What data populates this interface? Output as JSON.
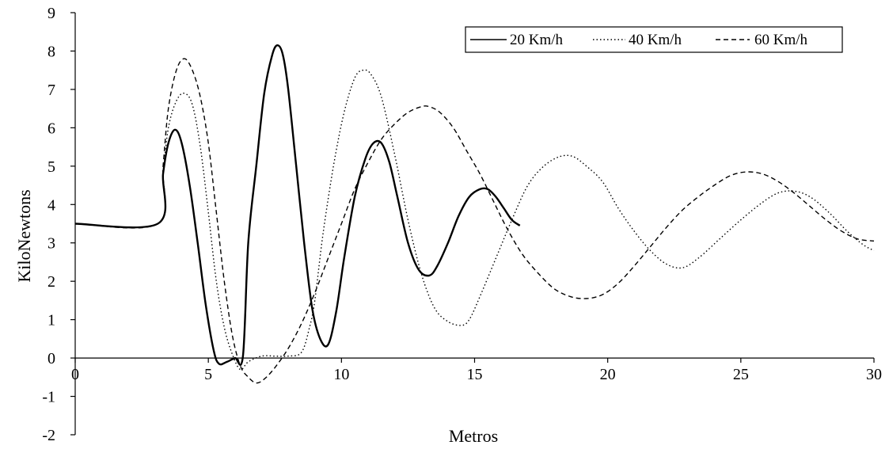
{
  "chart_data": {
    "type": "line",
    "xlabel": "Metros",
    "ylabel": "KiloNewtons",
    "xlim": [
      0,
      30
    ],
    "ylim": [
      -2,
      9
    ],
    "xticks": [
      0,
      5,
      10,
      15,
      20,
      25,
      30
    ],
    "yticks": [
      -2,
      -1,
      0,
      1,
      2,
      3,
      4,
      5,
      6,
      7,
      8,
      9
    ],
    "grid": false,
    "legend_position": "top-right",
    "series": [
      {
        "name": "20 Km/h",
        "style": "solid",
        "x": [
          0,
          3.1,
          3.3,
          3.5,
          3.75,
          4.0,
          4.3,
          4.6,
          4.9,
          5.2,
          5.4,
          5.7,
          6.0,
          6.3,
          6.5,
          6.8,
          7.1,
          7.4,
          7.6,
          7.8,
          8.0,
          8.3,
          8.6,
          8.9,
          9.2,
          9.5,
          9.8,
          10.1,
          10.5,
          10.9,
          11.2,
          11.5,
          11.8,
          12.1,
          12.5,
          12.9,
          13.3,
          13.6,
          14.0,
          14.4,
          14.8,
          15.2,
          15.5,
          15.8,
          16.1,
          16.4,
          16.7
        ],
        "y": [
          3.5,
          3.5,
          4.8,
          5.6,
          5.95,
          5.6,
          4.5,
          3.0,
          1.4,
          0.2,
          -0.15,
          -0.1,
          0.0,
          0.05,
          3.0,
          5.0,
          6.9,
          7.9,
          8.15,
          7.9,
          7.0,
          5.0,
          3.0,
          1.3,
          0.5,
          0.35,
          1.2,
          2.6,
          4.2,
          5.2,
          5.6,
          5.6,
          5.1,
          4.2,
          3.0,
          2.3,
          2.15,
          2.4,
          3.0,
          3.7,
          4.2,
          4.4,
          4.4,
          4.2,
          3.9,
          3.6,
          3.45
        ]
      },
      {
        "name": "40 Km/h",
        "style": "dotted",
        "x": [
          0,
          3.1,
          3.3,
          3.5,
          3.8,
          4.1,
          4.4,
          4.7,
          5.0,
          5.3,
          5.6,
          5.9,
          6.2,
          6.5,
          7.0,
          7.5,
          8.0,
          8.5,
          8.8,
          9.0,
          9.3,
          9.7,
          10.1,
          10.5,
          10.8,
          11.1,
          11.5,
          12.0,
          12.5,
          13.0,
          13.5,
          14.0,
          14.5,
          14.8,
          15.2,
          15.8,
          16.4,
          17.0,
          17.6,
          18.2,
          18.7,
          19.2,
          19.8,
          20.4,
          21.0,
          21.6,
          22.2,
          22.8,
          23.4,
          24.2,
          25.0,
          25.8,
          26.4,
          27.0,
          27.6,
          28.3,
          29.0,
          29.6,
          30.0
        ],
        "y": [
          3.5,
          3.5,
          4.8,
          6.0,
          6.7,
          6.9,
          6.6,
          5.5,
          3.8,
          2.0,
          0.8,
          0.1,
          -0.3,
          -0.1,
          0.05,
          0.05,
          0.05,
          0.15,
          0.8,
          1.5,
          3.2,
          5.0,
          6.4,
          7.3,
          7.5,
          7.4,
          6.8,
          5.3,
          3.6,
          2.2,
          1.3,
          0.95,
          0.85,
          1.0,
          1.6,
          2.6,
          3.6,
          4.5,
          5.0,
          5.25,
          5.25,
          5.0,
          4.6,
          3.9,
          3.3,
          2.8,
          2.45,
          2.35,
          2.6,
          3.1,
          3.6,
          4.05,
          4.3,
          4.35,
          4.2,
          3.8,
          3.3,
          2.95,
          2.8
        ]
      },
      {
        "name": "60 Km/h",
        "style": "dashed",
        "x": [
          0,
          3.1,
          3.3,
          3.5,
          3.8,
          4.1,
          4.4,
          4.7,
          5.0,
          5.3,
          5.6,
          5.9,
          6.2,
          6.5,
          6.8,
          7.1,
          7.5,
          8.0,
          8.5,
          9.0,
          9.5,
          10.0,
          10.5,
          11.0,
          11.5,
          12.0,
          12.5,
          13.0,
          13.3,
          13.7,
          14.2,
          14.7,
          15.2,
          15.7,
          16.2,
          16.8,
          17.4,
          18.0,
          18.6,
          19.2,
          19.8,
          20.4,
          21.0,
          21.6,
          22.2,
          22.8,
          23.4,
          24.0,
          24.6,
          25.2,
          25.8,
          26.4,
          27.0,
          27.6,
          28.2,
          28.8,
          29.4,
          30.0
        ],
        "y": [
          3.5,
          3.5,
          5.0,
          6.5,
          7.5,
          7.8,
          7.5,
          6.8,
          5.6,
          3.8,
          2.0,
          0.6,
          -0.2,
          -0.5,
          -0.65,
          -0.55,
          -0.25,
          0.25,
          0.9,
          1.7,
          2.6,
          3.5,
          4.4,
          5.1,
          5.7,
          6.1,
          6.4,
          6.55,
          6.55,
          6.4,
          6.0,
          5.4,
          4.8,
          4.1,
          3.4,
          2.7,
          2.2,
          1.8,
          1.6,
          1.55,
          1.65,
          1.95,
          2.4,
          2.9,
          3.4,
          3.85,
          4.2,
          4.5,
          4.75,
          4.85,
          4.8,
          4.6,
          4.3,
          3.95,
          3.6,
          3.3,
          3.1,
          3.05
        ]
      }
    ]
  }
}
